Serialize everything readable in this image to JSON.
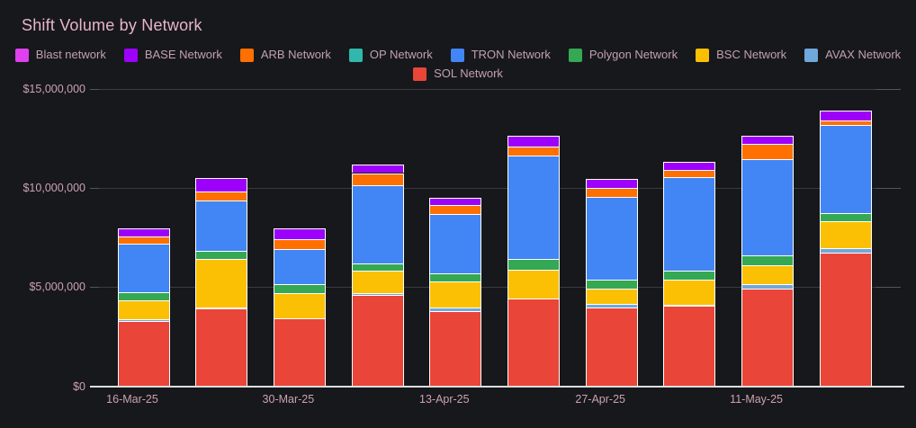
{
  "title": "Shift Volume by Network",
  "legend": {
    "items": [
      {
        "label": "Blast network",
        "color": "#df41ee"
      },
      {
        "label": "BASE Network",
        "color": "#9d00fb"
      },
      {
        "label": "ARB Network",
        "color": "#ff7000"
      },
      {
        "label": "OP Network",
        "color": "#2fb8ab"
      },
      {
        "label": "TRON Network",
        "color": "#4285f4"
      },
      {
        "label": "Polygon Network",
        "color": "#34a853"
      },
      {
        "label": "BSC Network",
        "color": "#fbc004"
      },
      {
        "label": "AVAX Network",
        "color": "#6fa8dc"
      },
      {
        "label": "SOL Network",
        "color": "#e94538"
      }
    ]
  },
  "y_axis": {
    "tick_labels": [
      "$15,000,000",
      "$10,000,000",
      "$5,000,000",
      "$0"
    ],
    "tick_values": [
      15000000,
      10000000,
      5000000,
      0
    ]
  },
  "x_axis": {
    "tick_labels": [
      "16-Mar-25",
      "30-Mar-25",
      "13-Apr-25",
      "27-Apr-25",
      "11-May-25"
    ],
    "tick_bar_indices": [
      0,
      2,
      4,
      6,
      8
    ]
  },
  "chart_data": {
    "type": "bar",
    "stacked": true,
    "title": "Shift Volume by Network",
    "n_bars": 10,
    "x_tick_labels": [
      "16-Mar-25",
      "30-Mar-25",
      "13-Apr-25",
      "27-Apr-25",
      "11-May-25"
    ],
    "x_tick_bar_indices": [
      0,
      2,
      4,
      6,
      8
    ],
    "ylabel": "",
    "xlabel": "",
    "ylim": [
      0,
      15000000
    ],
    "grid": "horizontal",
    "legend_position": "top-center",
    "segment_border_color": "#ffffff",
    "series_bottom_to_top": [
      {
        "name": "SOL Network",
        "color": "#e94538",
        "values": [
          3300000,
          3900000,
          3400000,
          4600000,
          3800000,
          4400000,
          3950000,
          4050000,
          4900000,
          6750000
        ]
      },
      {
        "name": "AVAX Network",
        "color": "#6fa8dc",
        "values": [
          80000,
          80000,
          30000,
          90000,
          180000,
          40000,
          180000,
          30000,
          250000,
          220000
        ]
      },
      {
        "name": "BSC Network",
        "color": "#fbc004",
        "values": [
          950000,
          2450000,
          1250000,
          1150000,
          1300000,
          1450000,
          800000,
          1300000,
          950000,
          1350000
        ]
      },
      {
        "name": "Polygon Network",
        "color": "#34a853",
        "values": [
          420000,
          400000,
          450000,
          350000,
          400000,
          530000,
          450000,
          450000,
          500000,
          400000
        ]
      },
      {
        "name": "TRON Network",
        "color": "#4285f4",
        "values": [
          2450000,
          2550000,
          1800000,
          3950000,
          3000000,
          5200000,
          4150000,
          4700000,
          4850000,
          4450000
        ]
      },
      {
        "name": "OP Network",
        "color": "#2fb8ab",
        "values": [
          0,
          0,
          0,
          0,
          0,
          0,
          0,
          0,
          0,
          0
        ]
      },
      {
        "name": "ARB Network",
        "color": "#ff7000",
        "values": [
          350000,
          450000,
          500000,
          600000,
          450000,
          450000,
          480000,
          350000,
          750000,
          230000
        ]
      },
      {
        "name": "BASE Network",
        "color": "#9d00fb",
        "values": [
          400000,
          650000,
          530000,
          450000,
          350000,
          550000,
          450000,
          420000,
          420000,
          500000
        ]
      },
      {
        "name": "Blast network",
        "color": "#df41ee",
        "values": [
          0,
          0,
          0,
          0,
          0,
          0,
          0,
          0,
          0,
          0
        ]
      }
    ]
  },
  "colors": {
    "background": "#17181c",
    "title_text": "#e7b6c3",
    "legend_text": "#c2a1ac",
    "axis_text": "#cba3af",
    "gridline": "#3a3b42",
    "axis_line": "#dededf",
    "segment_border": "#ffffff"
  }
}
